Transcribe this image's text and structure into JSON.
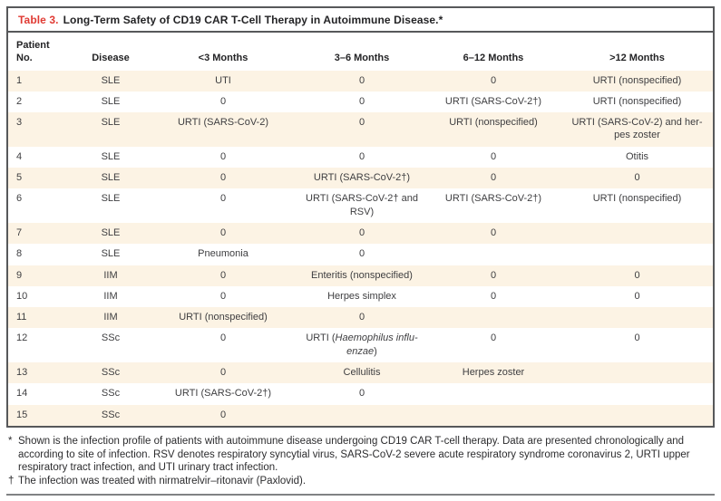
{
  "title": {
    "label": "Table 3.",
    "text": "Long-Term Safety of CD19 CAR T-Cell Therapy in Autoimmune Disease.*"
  },
  "table": {
    "headers": [
      "Patient\nNo.",
      "Disease",
      "<3 Months",
      "3–6 Months",
      "6–12 Months",
      ">12 Months"
    ],
    "rows": [
      {
        "cells": [
          "1",
          "SLE",
          "UTI",
          "0",
          "0",
          "URTI (nonspecified)"
        ]
      },
      {
        "cells": [
          "2",
          "SLE",
          "0",
          "0",
          "URTI (SARS-CoV-2†)",
          "URTI (nonspecified)"
        ]
      },
      {
        "cells": [
          "3",
          "SLE",
          "URTI (SARS-CoV-2)",
          "0",
          "URTI (nonspecified)",
          "URTI (SARS-CoV-2) and her-\npes zoster"
        ]
      },
      {
        "cells": [
          "4",
          "SLE",
          "0",
          "0",
          "0",
          "Otitis"
        ]
      },
      {
        "cells": [
          "5",
          "SLE",
          "0",
          "URTI (SARS-CoV-2†)",
          "0",
          "0"
        ]
      },
      {
        "cells": [
          "6",
          "SLE",
          "0",
          "URTI (SARS-CoV-2† and\nRSV)",
          "URTI (SARS-CoV-2†)",
          "URTI (nonspecified)"
        ]
      },
      {
        "cells": [
          "7",
          "SLE",
          "0",
          "0",
          "0",
          ""
        ]
      },
      {
        "cells": [
          "8",
          "SLE",
          "Pneumonia",
          "0",
          "",
          ""
        ]
      },
      {
        "cells": [
          "9",
          "IIM",
          "0",
          "Enteritis (nonspecified)",
          "0",
          "0"
        ]
      },
      {
        "cells": [
          "10",
          "IIM",
          "0",
          "Herpes simplex",
          "0",
          "0"
        ]
      },
      {
        "cells": [
          "11",
          "IIM",
          "URTI (nonspecified)",
          "0",
          "",
          ""
        ]
      },
      {
        "cells": [
          "12",
          "SSc",
          "0",
          "URTI (*Haemophilus influ-*\n*enzae*)",
          "0",
          "0"
        ]
      },
      {
        "cells": [
          "13",
          "SSc",
          "0",
          "Cellulitis",
          "Herpes zoster",
          ""
        ]
      },
      {
        "cells": [
          "14",
          "SSc",
          "URTI (SARS-CoV-2†)",
          "0",
          "",
          ""
        ]
      },
      {
        "cells": [
          "15",
          "SSc",
          "0",
          "",
          "",
          ""
        ]
      }
    ]
  },
  "footnotes": [
    {
      "symbol": "*",
      "text": "Shown is the infection profile of patients with autoimmune disease undergoing CD19 CAR T-cell therapy. Data are presented chronologically and according to site of infection. RSV denotes respiratory syncytial virus, SARS-CoV-2 severe acute respiratory syndrome coronavirus 2, URTI upper respiratory tract infection, and UTI urinary tract infection."
    },
    {
      "symbol": "†",
      "text": "The infection was treated with nirmatrelvir–ritonavir (Paxlovid)."
    }
  ],
  "colors": {
    "accent_red": "#e03a33",
    "row_shade": "#fcf3e4",
    "frame_border": "#57585a",
    "rule_gray": "#808284"
  }
}
